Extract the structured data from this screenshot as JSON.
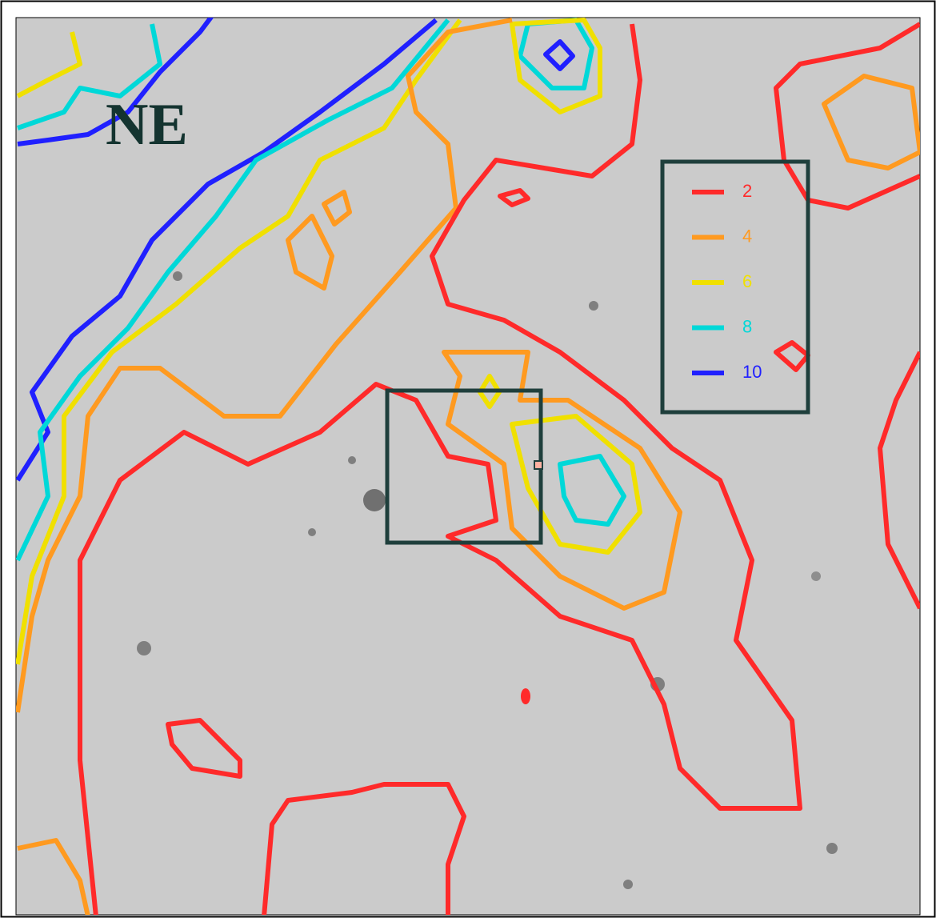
{
  "image": {
    "label": "NE",
    "legend": [
      {
        "level": 2,
        "color": "#ff2a2a"
      },
      {
        "level": 4,
        "color": "#ff9a20"
      },
      {
        "level": 6,
        "color": "#f0e000"
      },
      {
        "level": 8,
        "color": "#00d8d8"
      },
      {
        "level": 10,
        "color": "#2020ff"
      }
    ]
  }
}
